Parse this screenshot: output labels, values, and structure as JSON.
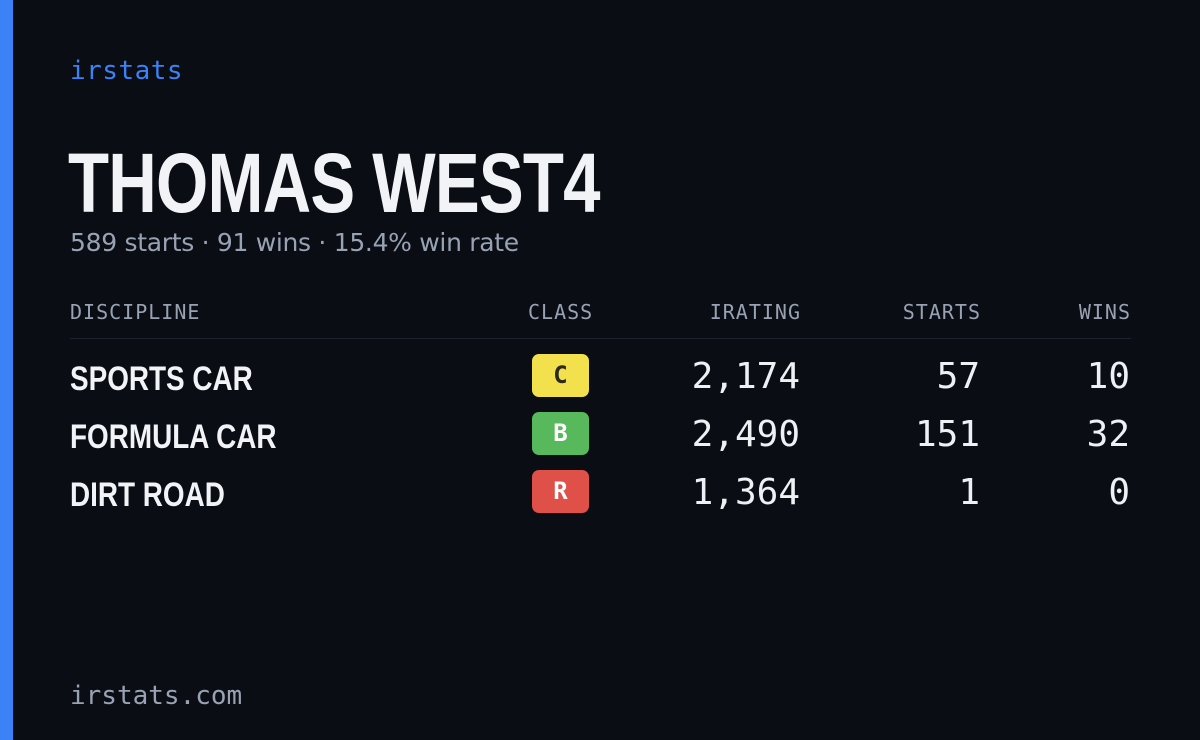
{
  "brand": "irstats",
  "driver": {
    "name": "THOMAS WEST4",
    "summary": "589 starts · 91 wins · 15.4% win rate"
  },
  "table": {
    "headers": {
      "discipline": "DISCIPLINE",
      "class": "CLASS",
      "irating": "IRATING",
      "starts": "STARTS",
      "wins": "WINS"
    },
    "rows": [
      {
        "discipline": "SPORTS CAR",
        "class": "C",
        "class_color": "#f2e14c",
        "class_text_color": "#2a2a1a",
        "irating": "2,174",
        "starts": "57",
        "wins": "10"
      },
      {
        "discipline": "FORMULA CAR",
        "class": "B",
        "class_color": "#57b95c",
        "class_text_color": "#ffffff",
        "irating": "2,490",
        "starts": "151",
        "wins": "32"
      },
      {
        "discipline": "DIRT ROAD",
        "class": "R",
        "class_color": "#de5048",
        "class_text_color": "#ffffff",
        "irating": "1,364",
        "starts": "1",
        "wins": "0"
      }
    ]
  },
  "footer": "irstats.com",
  "colors": {
    "accent": "#3b82f6",
    "background": "#0a0d14"
  }
}
